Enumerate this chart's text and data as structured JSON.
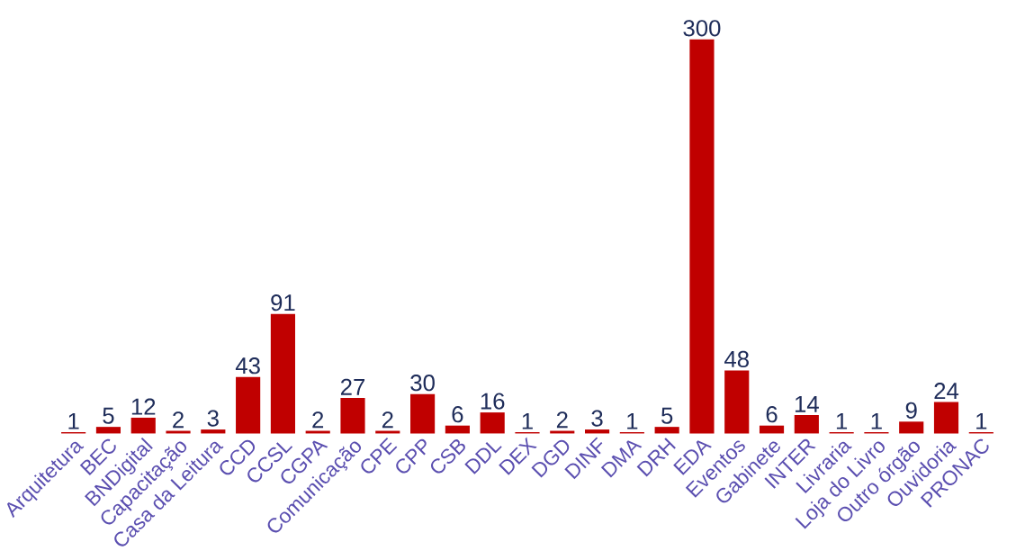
{
  "chart_data": {
    "type": "bar",
    "categories": [
      "Arquitetura",
      "BEC",
      "BNDigital",
      "Capacitação",
      "Casa da Leitura",
      "CCD",
      "CCSL",
      "CGPA",
      "Comunicação",
      "CPE",
      "CPP",
      "CSB",
      "DDL",
      "DEX",
      "DGD",
      "DINF",
      "DMA",
      "DRH",
      "EDA",
      "Eventos",
      "Gabinete",
      "INTER",
      "Livraria",
      "Loja do Livro",
      "Outro órgão",
      "Ouvidoria",
      "PRONAC"
    ],
    "values": [
      1,
      5,
      12,
      2,
      3,
      43,
      91,
      2,
      27,
      2,
      30,
      6,
      16,
      1,
      2,
      3,
      1,
      5,
      300,
      48,
      6,
      14,
      1,
      1,
      9,
      24,
      1
    ],
    "color": "#c00000",
    "data_labels": true
  }
}
